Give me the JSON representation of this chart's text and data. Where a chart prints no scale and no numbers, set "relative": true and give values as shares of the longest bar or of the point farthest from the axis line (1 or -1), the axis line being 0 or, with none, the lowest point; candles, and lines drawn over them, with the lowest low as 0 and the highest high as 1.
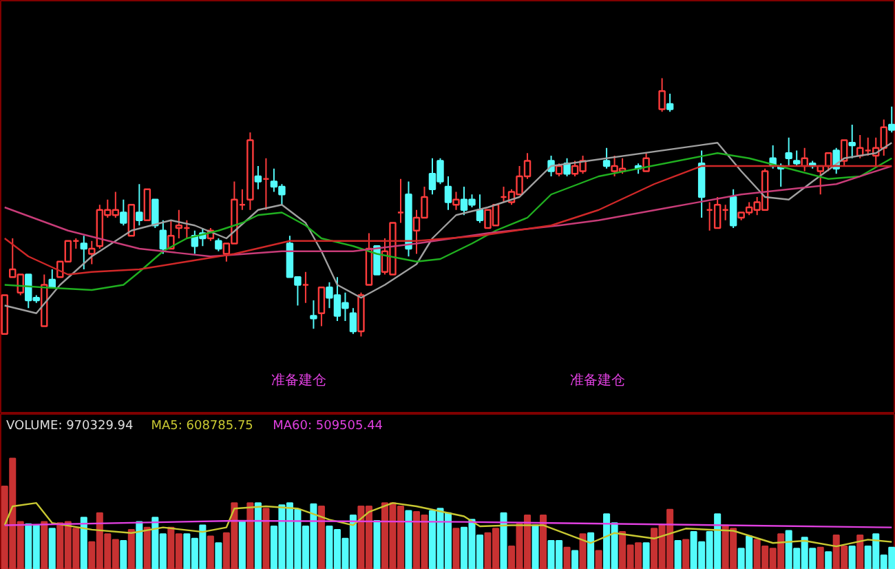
{
  "chart_data": [
    {
      "type": "candlestick",
      "relative": true,
      "tick_labels": false,
      "categories": [
        null,
        null,
        null,
        null,
        null,
        null,
        null,
        null,
        null,
        null,
        null,
        null,
        null,
        null,
        null,
        null,
        null,
        null,
        null,
        null,
        null,
        null,
        null,
        null,
        null,
        null,
        null,
        null,
        null,
        null,
        null,
        null,
        null,
        null,
        null,
        null,
        null,
        null,
        null,
        null,
        null,
        null,
        null,
        null,
        null,
        null,
        null,
        null,
        null,
        null,
        null,
        null,
        null,
        null,
        null,
        null,
        null,
        null,
        null,
        null,
        null,
        null,
        null,
        null,
        null,
        null,
        null,
        null,
        null,
        null,
        null,
        null,
        null,
        null,
        null,
        null,
        null,
        null,
        null,
        null,
        null,
        null,
        null,
        null,
        null,
        null,
        null,
        null,
        null,
        null,
        null,
        null,
        null,
        null,
        null,
        null,
        null,
        null,
        null,
        null,
        null,
        null,
        null,
        null,
        null,
        null,
        null,
        null,
        null,
        null,
        null,
        null,
        null
      ],
      "ohlc": [
        [
          0.01,
          0.16,
          0.01,
          0.16
        ],
        [
          0.23,
          0.38,
          0.23,
          0.26
        ],
        [
          0.17,
          0.24,
          0.16,
          0.24
        ],
        [
          0.24,
          0.24,
          0.11,
          0.14
        ],
        [
          0.15,
          0.16,
          0.13,
          0.14
        ],
        [
          0.04,
          0.24,
          0.04,
          0.2
        ],
        [
          0.22,
          0.26,
          0.19,
          0.19
        ],
        [
          0.23,
          0.29,
          0.23,
          0.29
        ],
        [
          0.29,
          0.37,
          0.29,
          0.37
        ],
        [
          0.37,
          0.38,
          0.34,
          0.37
        ],
        [
          0.36,
          0.39,
          0.26,
          0.34
        ],
        [
          0.32,
          0.37,
          0.28,
          0.34
        ],
        [
          0.35,
          0.51,
          0.34,
          0.49
        ],
        [
          0.47,
          0.53,
          0.46,
          0.49
        ],
        [
          0.47,
          0.56,
          0.46,
          0.49
        ],
        [
          0.48,
          0.53,
          0.43,
          0.44
        ],
        [
          0.39,
          0.51,
          0.39,
          0.51
        ],
        [
          0.48,
          0.59,
          0.43,
          0.45
        ],
        [
          0.45,
          0.57,
          0.45,
          0.57
        ],
        [
          0.53,
          0.53,
          0.42,
          0.43
        ],
        [
          0.41,
          0.45,
          0.32,
          0.34
        ],
        [
          0.34,
          0.45,
          0.34,
          0.39
        ],
        [
          0.42,
          0.49,
          0.38,
          0.43
        ],
        [
          0.42,
          0.45,
          0.38,
          0.42
        ],
        [
          0.39,
          0.41,
          0.32,
          0.35
        ],
        [
          0.4,
          0.42,
          0.35,
          0.38
        ],
        [
          0.38,
          0.42,
          0.37,
          0.41
        ],
        [
          0.37,
          0.38,
          0.33,
          0.34
        ],
        [
          0.32,
          0.36,
          0.29,
          0.36
        ],
        [
          0.36,
          0.6,
          0.36,
          0.53
        ],
        [
          0.51,
          0.57,
          0.49,
          0.51
        ],
        [
          0.53,
          0.79,
          0.49,
          0.76
        ],
        [
          0.62,
          0.66,
          0.57,
          0.6
        ],
        [
          0.61,
          0.69,
          0.49,
          0.61
        ],
        [
          0.6,
          0.65,
          0.56,
          0.58
        ],
        [
          0.58,
          0.59,
          0.51,
          0.55
        ],
        [
          0.36,
          0.39,
          0.23,
          0.23
        ],
        [
          0.23,
          0.23,
          0.12,
          0.2
        ],
        [
          0.2,
          0.25,
          0.13,
          0.2
        ],
        [
          0.08,
          0.14,
          0.03,
          0.07
        ],
        [
          0.09,
          0.19,
          0.04,
          0.19
        ],
        [
          0.19,
          0.21,
          0.11,
          0.15
        ],
        [
          0.16,
          0.23,
          0.06,
          0.08
        ],
        [
          0.13,
          0.17,
          0.06,
          0.11
        ],
        [
          0.09,
          0.11,
          0.01,
          0.02
        ],
        [
          0.02,
          0.17,
          0,
          0.16
        ],
        [
          0.2,
          0.4,
          0.2,
          0.34
        ],
        [
          0.35,
          0.35,
          0.24,
          0.24
        ],
        [
          0.25,
          0.38,
          0.24,
          0.33
        ],
        [
          0.24,
          0.44,
          0.24,
          0.44
        ],
        [
          0.48,
          0.61,
          0.44,
          0.48
        ],
        [
          0.55,
          0.6,
          0.31,
          0.34
        ],
        [
          0.41,
          0.49,
          0.32,
          0.46
        ],
        [
          0.46,
          0.58,
          0.46,
          0.54
        ],
        [
          0.63,
          0.69,
          0.55,
          0.57
        ],
        [
          0.68,
          0.69,
          0.59,
          0.6
        ],
        [
          0.58,
          0.62,
          0.49,
          0.52
        ],
        [
          0.51,
          0.56,
          0.49,
          0.53
        ],
        [
          0.53,
          0.58,
          0.47,
          0.49
        ],
        [
          0.53,
          0.55,
          0.5,
          0.51
        ],
        [
          0.49,
          0.55,
          0.44,
          0.45
        ],
        [
          0.42,
          0.49,
          0.42,
          0.49
        ],
        [
          0.43,
          0.51,
          0.43,
          0.51
        ],
        [
          0.54,
          0.58,
          0.52,
          0.54
        ],
        [
          0.52,
          0.57,
          0.51,
          0.56
        ],
        [
          0.55,
          0.66,
          0.55,
          0.62
        ],
        [
          0.62,
          0.71,
          0.61,
          0.68
        ],
        null,
        null,
        [
          0.68,
          0.7,
          0.62,
          0.64
        ],
        [
          0.63,
          0.67,
          0.62,
          0.66
        ],
        [
          0.67,
          0.69,
          0.62,
          0.63
        ],
        [
          0.63,
          0.68,
          0.62,
          0.66
        ],
        [
          0.64,
          0.7,
          0.63,
          0.68
        ],
        null,
        null,
        [
          0.68,
          0.73,
          0.65,
          0.66
        ],
        [
          0.64,
          0.7,
          0.62,
          0.66
        ],
        [
          0.64,
          0.69,
          0.63,
          0.65
        ],
        null,
        [
          0.66,
          0.67,
          0.63,
          0.65
        ],
        [
          0.64,
          0.71,
          0.64,
          0.69
        ],
        null,
        [
          0.88,
          1,
          0.87,
          0.95
        ],
        [
          0.9,
          0.94,
          0.87,
          0.88
        ],
        null,
        null,
        null,
        [
          0.67,
          0.72,
          0.46,
          0.54
        ],
        [
          0.49,
          0.52,
          0.41,
          0.49
        ],
        [
          0.42,
          0.54,
          0.42,
          0.51
        ],
        [
          0.49,
          0.51,
          0.45,
          0.49
        ],
        [
          0.54,
          0.57,
          0.42,
          0.43
        ],
        [
          0.46,
          0.48,
          0.45,
          0.48
        ],
        [
          0.48,
          0.52,
          0.47,
          0.5
        ],
        [
          0.49,
          0.54,
          0.47,
          0.52
        ],
        [
          0.49,
          0.65,
          0.49,
          0.64
        ],
        [
          0.69,
          0.74,
          0.65,
          0.66
        ],
        [
          0.66,
          0.67,
          0.58,
          0.65
        ],
        [
          0.71,
          0.77,
          0.66,
          0.69
        ],
        [
          0.68,
          0.72,
          0.66,
          0.67
        ],
        [
          0.66,
          0.73,
          0.64,
          0.69
        ],
        [
          0.67,
          0.68,
          0.65,
          0.66
        ],
        [
          0.64,
          0.66,
          0.55,
          0.66
        ],
        [
          0.66,
          0.71,
          0.64,
          0.71
        ],
        [
          0.72,
          0.73,
          0.63,
          0.65
        ],
        [
          0.68,
          0.76,
          0.66,
          0.76
        ],
        [
          0.75,
          0.82,
          0.69,
          0.74
        ],
        [
          0.7,
          0.78,
          0.69,
          0.73
        ],
        [
          0.72,
          0.77,
          0.7,
          0.72
        ],
        [
          0.7,
          0.77,
          0.66,
          0.73
        ],
        [
          0.73,
          0.84,
          0.7,
          0.81
        ],
        [
          0.82,
          0.89,
          0.79,
          0.8
        ]
      ],
      "series": [
        {
          "type": "line",
          "color": "#a0a0a0",
          "values": [
            0.12,
            null,
            null,
            null,
            0.09,
            null,
            null,
            0.2,
            null,
            null,
            null,
            0.31,
            null,
            null,
            null,
            null,
            0.41,
            null,
            null,
            null,
            null,
            0.45,
            null,
            null,
            0.43,
            null,
            null,
            null,
            0.38,
            null,
            null,
            null,
            0.49,
            null,
            null,
            0.51,
            null,
            null,
            0.44,
            null,
            0.33,
            null,
            0.2,
            null,
            null,
            0.15,
            null,
            null,
            0.2,
            null,
            null,
            null,
            0.28,
            null,
            0.38,
            null,
            null,
            0.47,
            null,
            null,
            null,
            0.5,
            null,
            null,
            null,
            0.54,
            null,
            null,
            null,
            0.66,
            null,
            null,
            null,
            null,
            null,
            null,
            null,
            null,
            null,
            null,
            null,
            null,
            null,
            null,
            null,
            null,
            null,
            null,
            null,
            null,
            0.75,
            null,
            null,
            0.64,
            null,
            null,
            0.54,
            null,
            null,
            0.53,
            null,
            null,
            0.6,
            null,
            null,
            null,
            0.69,
            null,
            null,
            null,
            0.71,
            null,
            0.75
          ]
        },
        {
          "type": "line",
          "color": "#20b020",
          "values": [
            0.2,
            null,
            null,
            null,
            null,
            0.19,
            null,
            null,
            null,
            null,
            null,
            0.18,
            null,
            null,
            null,
            0.2,
            null,
            0.25,
            null,
            null,
            0.33,
            null,
            null,
            0.38,
            null,
            null,
            null,
            0.41,
            null,
            null,
            0.44,
            null,
            0.47,
            null,
            null,
            0.48,
            null,
            null,
            0.43,
            null,
            0.38,
            null,
            null,
            null,
            0.35,
            null,
            null,
            0.32,
            null,
            null,
            null,
            null,
            0.29,
            null,
            null,
            0.3,
            null,
            null,
            null,
            0.36,
            null,
            null,
            0.41,
            null,
            null,
            null,
            0.46,
            null,
            null,
            0.55,
            null,
            null,
            null,
            null,
            null,
            0.62,
            null,
            null,
            null,
            null,
            null,
            null,
            null,
            null,
            null,
            null,
            null,
            null,
            null,
            null,
            0.71,
            null,
            null,
            null,
            0.69,
            null,
            null,
            null,
            null,
            0.65,
            null,
            null,
            null,
            null,
            0.61,
            null,
            null,
            null,
            0.62,
            null,
            null,
            null,
            0.69
          ]
        },
        {
          "type": "line",
          "color": "#c83c78",
          "values": [
            0.5,
            null,
            null,
            null,
            null,
            null,
            null,
            null,
            0.41,
            null,
            null,
            null,
            null,
            null,
            null,
            null,
            null,
            0.34,
            null,
            null,
            null,
            null,
            null,
            null,
            null,
            null,
            0.31,
            null,
            null,
            null,
            null,
            null,
            null,
            null,
            null,
            0.33,
            null,
            null,
            null,
            null,
            null,
            null,
            null,
            null,
            0.33,
            null,
            null,
            null,
            null,
            null,
            null,
            null,
            0.36,
            null,
            null,
            null,
            null,
            null,
            null,
            null,
            null,
            0.4,
            null,
            null,
            null,
            null,
            null,
            null,
            null,
            null,
            0.43,
            null,
            null,
            null,
            null,
            0.45,
            null,
            null,
            null,
            null,
            null,
            null,
            null,
            null,
            0.5,
            null,
            null,
            null,
            null,
            null,
            null,
            null,
            null,
            0.55,
            null,
            null,
            null,
            null,
            null,
            null,
            null,
            null,
            null,
            null,
            null,
            0.59,
            null,
            null,
            null,
            null,
            null,
            null,
            0.66
          ]
        },
        {
          "type": "line",
          "color": "#d02828",
          "values": [
            0.38,
            null,
            null,
            0.31,
            null,
            null,
            null,
            null,
            0.24,
            null,
            null,
            0.25,
            null,
            null,
            null,
            null,
            null,
            0.26,
            null,
            null,
            null,
            null,
            null,
            0.29,
            null,
            null,
            null,
            null,
            null,
            0.32,
            null,
            null,
            null,
            null,
            null,
            null,
            0.37,
            null,
            null,
            null,
            null,
            null,
            null,
            null,
            0.37,
            null,
            null,
            null,
            null,
            null,
            null,
            null,
            0.37,
            null,
            null,
            null,
            null,
            null,
            null,
            null,
            0.39,
            null,
            null,
            null,
            null,
            null,
            null,
            null,
            null,
            0.43,
            null,
            null,
            null,
            null,
            null,
            0.49,
            null,
            null,
            null,
            null,
            null,
            null,
            0.59,
            null,
            null,
            null,
            null,
            null,
            0.66,
            null,
            null,
            null,
            null,
            null,
            null,
            null,
            null,
            null,
            0.66,
            null,
            null,
            null,
            null,
            null,
            null,
            null,
            null,
            null,
            null,
            null,
            null,
            null,
            0.66
          ]
        }
      ],
      "annotations": [
        "准备建仓",
        "准备建仓"
      ]
    },
    {
      "type": "bar",
      "relative": true,
      "tick_labels": false,
      "legend": "top left",
      "categories": [
        null,
        null,
        null,
        null,
        null,
        null,
        null,
        null,
        null,
        null,
        null,
        null,
        null,
        null,
        null,
        null,
        null,
        null,
        null,
        null,
        null,
        null,
        null,
        null,
        null,
        null,
        null,
        null,
        null,
        null,
        null,
        null,
        null,
        null,
        null,
        null,
        null,
        null,
        null,
        null,
        null,
        null,
        null,
        null,
        null,
        null,
        null,
        null,
        null,
        null,
        null,
        null,
        null,
        null,
        null,
        null,
        null,
        null,
        null,
        null,
        null,
        null,
        null,
        null,
        null,
        null,
        null,
        null,
        null,
        null,
        null,
        null,
        null,
        null,
        null,
        null,
        null,
        null,
        null,
        null,
        null,
        null,
        null,
        null,
        null,
        null,
        null,
        null,
        null,
        null,
        null,
        null,
        null,
        null,
        null,
        null,
        null,
        null,
        null,
        null,
        null,
        null,
        null,
        null,
        null,
        null,
        null,
        null,
        null,
        null,
        null,
        null,
        null
      ],
      "series": [
        {
          "name": "VOLUME: 970329.94",
          "type": "bar",
          "color": "#dcdcdc",
          "values": [
            0.75,
            1.0,
            0.43,
            0.41,
            0.4,
            0.43,
            0.37,
            0.42,
            0.43,
            0.37,
            0.47,
            0.25,
            0.51,
            0.32,
            0.27,
            0.26,
            0.36,
            0.43,
            0.38,
            0.47,
            0.32,
            0.38,
            0.32,
            0.32,
            0.28,
            0.4,
            0.3,
            0.24,
            0.33,
            0.6,
            0.44,
            0.6,
            0.6,
            0.55,
            0.39,
            0.58,
            0.6,
            0.54,
            0.39,
            0.59,
            0.57,
            0.39,
            0.36,
            0.28,
            0.49,
            0.57,
            0.57,
            0.44,
            0.6,
            0.6,
            0.57,
            0.53,
            0.52,
            0.49,
            0.53,
            0.55,
            0.51,
            0.37,
            0.38,
            0.45,
            0.31,
            0.33,
            0.37,
            0.51,
            0.21,
            0.41,
            0.49,
            0.4,
            0.49,
            0.26,
            0.26,
            0.2,
            0.17,
            0.32,
            0.33,
            0.17,
            0.5,
            0.42,
            0.34,
            0.22,
            0.24,
            0.24,
            0.37,
            0.4,
            0.54,
            0.26,
            0.27,
            0.34,
            0.25,
            0.34,
            0.5,
            0.4,
            0.37,
            0.19,
            0.3,
            0.27,
            0.21,
            0.19,
            0.32,
            0.35,
            0.19,
            0.29,
            0.19,
            0.2,
            0.16,
            0.31,
            0.21,
            0.21,
            0.31,
            0.21,
            0.32,
            0.13,
            0.2
          ],
          "colors": [
            "#c83232",
            "#c83232",
            "#c83232",
            "#54fcfc",
            "#54fcfc",
            "#c83232",
            "#54fcfc",
            "#c83232",
            "#c83232",
            "#c83232",
            "#54fcfc",
            "#c83232",
            "#c83232",
            "#c83232",
            "#c83232",
            "#54fcfc",
            "#c83232",
            "#54fcfc",
            "#c83232",
            "#54fcfc",
            "#54fcfc",
            "#c83232",
            "#c83232",
            "#54fcfc",
            "#54fcfc",
            "#54fcfc",
            "#c83232",
            "#54fcfc",
            "#c83232",
            "#c83232",
            "#54fcfc",
            "#c83232",
            "#54fcfc",
            "#c83232",
            "#54fcfc",
            "#54fcfc",
            "#54fcfc",
            "#54fcfc",
            "#54fcfc",
            "#54fcfc",
            "#c83232",
            "#54fcfc",
            "#54fcfc",
            "#54fcfc",
            "#54fcfc",
            "#c83232",
            "#c83232",
            "#54fcfc",
            "#c83232",
            "#c83232",
            "#c83232",
            "#54fcfc",
            "#c83232",
            "#c83232",
            "#54fcfc",
            "#54fcfc",
            "#54fcfc",
            "#c83232",
            "#54fcfc",
            "#54fcfc",
            "#54fcfc",
            "#c83232",
            "#c83232",
            "#54fcfc",
            "#c83232",
            "#c83232",
            "#c83232",
            "#54fcfc",
            "#c83232",
            "#54fcfc",
            "#54fcfc",
            "#c83232",
            "#54fcfc",
            "#c83232",
            "#54fcfc",
            "#c83232",
            "#54fcfc",
            "#54fcfc",
            "#c83232",
            "#c83232",
            "#c83232",
            "#54fcfc",
            "#c83232",
            "#c83232",
            "#c83232",
            "#54fcfc",
            "#c83232",
            "#54fcfc",
            "#54fcfc",
            "#54fcfc",
            "#54fcfc",
            "#c83232",
            "#c83232",
            "#54fcfc",
            "#54fcfc",
            "#c83232",
            "#c83232",
            "#c83232",
            "#c83232",
            "#54fcfc",
            "#54fcfc",
            "#54fcfc",
            "#54fcfc",
            "#c83232",
            "#54fcfc",
            "#c83232",
            "#c83232",
            "#54fcfc",
            "#c83232",
            "#54fcfc",
            "#54fcfc",
            "#54fcfc",
            "#54fcfc"
          ]
        },
        {
          "name": "MA5: 608785.75",
          "type": "line",
          "color": "#c8c832",
          "values": [
            0.4,
            0.57,
            null,
            null,
            0.6,
            null,
            0.42,
            null,
            null,
            null,
            null,
            0.36,
            null,
            null,
            null,
            null,
            0.33,
            null,
            null,
            null,
            0.38,
            null,
            null,
            null,
            null,
            0.34,
            null,
            null,
            0.38,
            0.55,
            null,
            null,
            null,
            0.57,
            null,
            null,
            null,
            0.55,
            null,
            null,
            null,
            0.45,
            null,
            null,
            0.4,
            null,
            0.52,
            null,
            null,
            0.6,
            null,
            null,
            0.57,
            null,
            null,
            null,
            null,
            null,
            0.48,
            null,
            0.39,
            null,
            null,
            null,
            0.4,
            null,
            null,
            null,
            0.4,
            null,
            null,
            null,
            null,
            null,
            0.24,
            null,
            null,
            0.33,
            null,
            null,
            null,
            null,
            0.28,
            null,
            null,
            null,
            0.37,
            null,
            null,
            null,
            null,
            null,
            0.35,
            null,
            null,
            null,
            null,
            0.24,
            null,
            null,
            null,
            0.26,
            null,
            null,
            null,
            0.21,
            null,
            null,
            null,
            0.27,
            null,
            null,
            0.25
          ]
        },
        {
          "name": "MA60: 509505.44",
          "type": "line",
          "color": "#e040e0",
          "values": [
            0.4,
            null,
            null,
            null,
            null,
            null,
            null,
            null,
            null,
            null,
            null,
            null,
            null,
            null,
            null,
            null,
            null,
            null,
            null,
            null,
            null,
            null,
            null,
            null,
            null,
            null,
            null,
            null,
            null,
            0.44,
            null,
            null,
            null,
            null,
            null,
            null,
            null,
            null,
            null,
            null,
            null,
            null,
            null,
            null,
            null,
            null,
            null,
            null,
            null,
            null,
            null,
            null,
            null,
            null,
            null,
            null,
            null,
            null,
            0.43,
            null,
            null,
            null,
            null,
            null,
            null,
            null,
            null,
            null,
            null,
            null,
            null,
            null,
            null,
            null,
            null,
            null,
            null,
            null,
            null,
            null,
            null,
            null,
            null,
            null,
            null,
            null,
            null,
            null,
            null,
            null,
            null,
            null,
            null,
            null,
            null,
            null,
            null,
            null,
            null,
            null,
            null,
            null,
            null,
            null,
            null,
            null,
            null,
            null,
            null,
            null,
            null,
            null,
            0.38
          ]
        }
      ]
    }
  ]
}
